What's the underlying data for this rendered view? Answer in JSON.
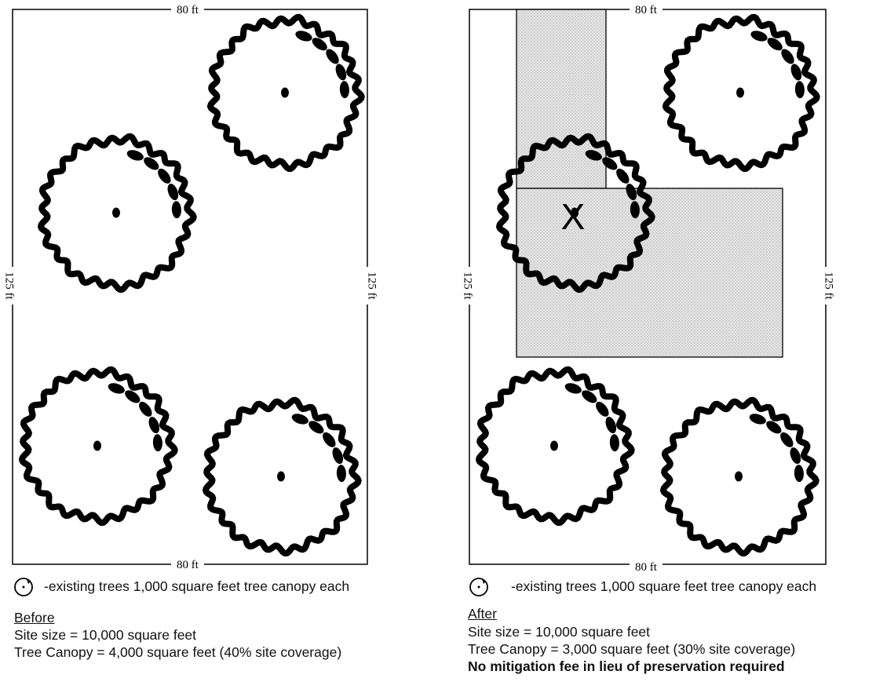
{
  "panels": [
    {
      "id": "before",
      "dimensions": {
        "top": "80 ft",
        "bottom": "80 ft",
        "left": "125 ft",
        "right": "125 ft"
      },
      "legend": "-existing trees 1,000 square feet tree canopy each",
      "heading": "Before",
      "lines": [
        "Site size = 10,000 square feet",
        "Tree Canopy = 4,000 square feet (40% site coverage)"
      ],
      "note": ""
    },
    {
      "id": "after",
      "dimensions": {
        "top": "80 ft",
        "bottom": "80 ft",
        "left": "125 ft",
        "right": "125 ft"
      },
      "removed_marker": "X",
      "legend": "-existing trees 1,000 square feet tree canopy each",
      "heading": "After",
      "lines": [
        "Site size = 10,000 square feet",
        "Tree Canopy = 3,000 square feet (30% site coverage)"
      ],
      "note": "No mitigation fee in lieu of preservation required"
    }
  ],
  "colors": {
    "line": "#000000",
    "building_fill": "#e2e2e2",
    "background": "#ffffff"
  }
}
